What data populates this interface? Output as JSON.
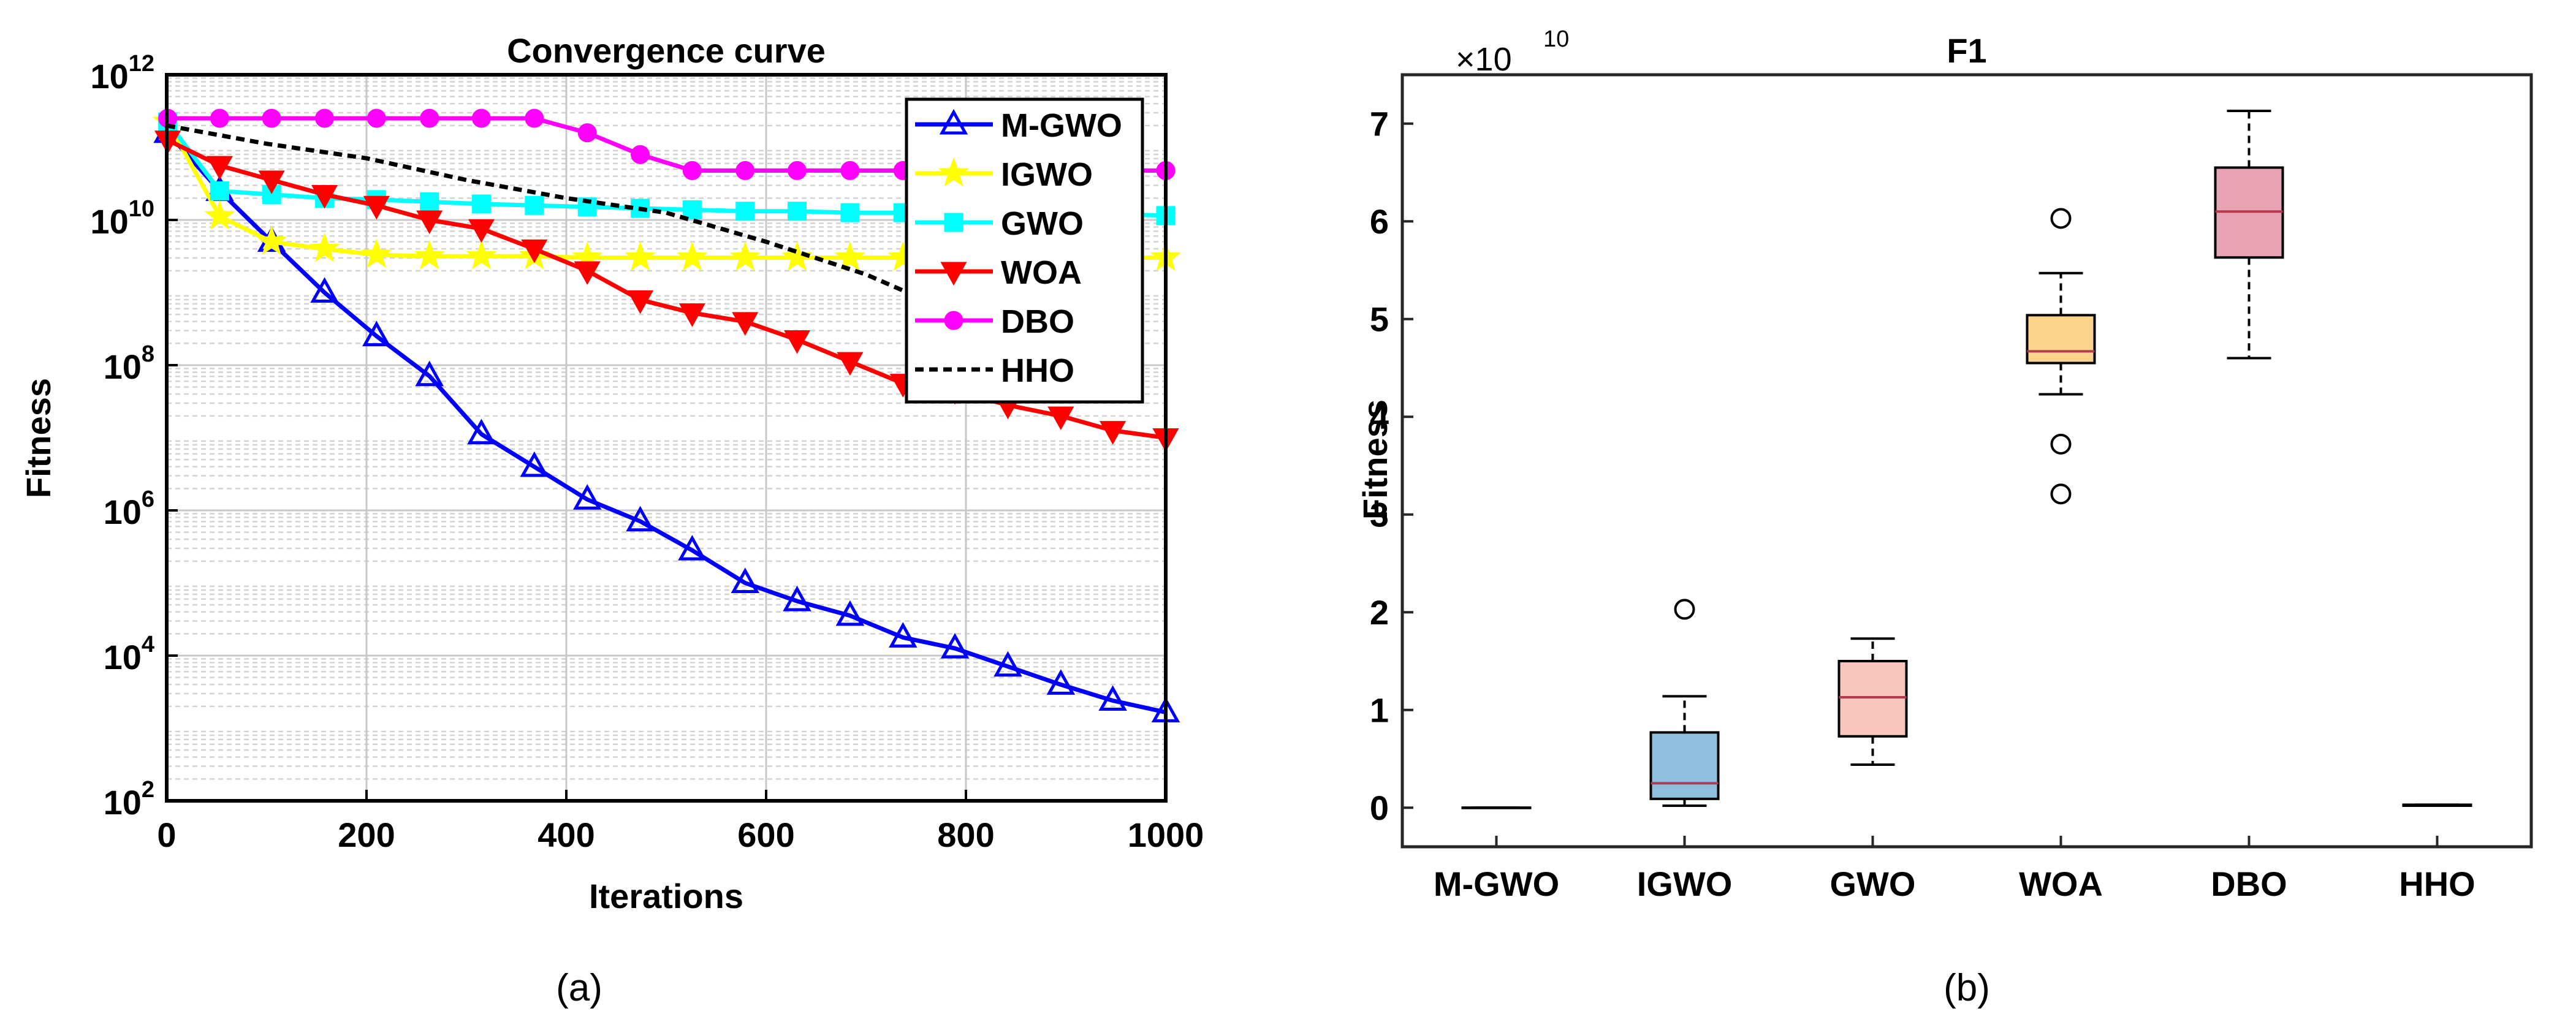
{
  "chart_data": [
    {
      "type": "line",
      "title": "Convergence curve",
      "xlabel": "Iterations",
      "ylabel": "Fitness",
      "xlim": [
        0,
        1000
      ],
      "ylim_log10": [
        2,
        12
      ],
      "yscale": "log",
      "grid": true,
      "legend_position": "top-right",
      "panel_label": "(a)",
      "xticks": [
        {
          "value": 0,
          "label": "0"
        },
        {
          "value": 200,
          "label": "200"
        },
        {
          "value": 400,
          "label": "400"
        },
        {
          "value": 600,
          "label": "600"
        },
        {
          "value": 800,
          "label": "800"
        },
        {
          "value": 1000,
          "label": "1000"
        }
      ],
      "yticks": [
        {
          "exp": 2,
          "base": "10",
          "sup": "2"
        },
        {
          "exp": 4,
          "base": "10",
          "sup": "4"
        },
        {
          "exp": 6,
          "base": "10",
          "sup": "6"
        },
        {
          "exp": 8,
          "base": "10",
          "sup": "8"
        },
        {
          "exp": 10,
          "base": "10",
          "sup": "10"
        },
        {
          "exp": 12,
          "base": "10",
          "sup": "12"
        }
      ],
      "series": [
        {
          "name": "M-GWO",
          "color": "#0000ff",
          "marker": "triangle-up",
          "dash": "",
          "x": [
            1,
            53,
            105,
            158,
            210,
            263,
            315,
            368,
            421,
            474,
            526,
            579,
            631,
            684,
            737,
            789,
            842,
            895,
            947,
            1000
          ],
          "log10_y": [
            11.2,
            10.4,
            9.7,
            9.0,
            8.4,
            7.85,
            7.05,
            6.6,
            6.15,
            5.85,
            5.45,
            5.0,
            4.75,
            4.55,
            4.25,
            4.1,
            3.85,
            3.6,
            3.38,
            3.22
          ]
        },
        {
          "name": "IGWO",
          "color": "#ffff00",
          "marker": "star",
          "dash": "",
          "x": [
            1,
            53,
            105,
            158,
            210,
            263,
            315,
            368,
            421,
            474,
            526,
            579,
            631,
            684,
            737,
            789,
            842,
            895,
            947,
            1000
          ],
          "log10_y": [
            11.35,
            10.05,
            9.7,
            9.6,
            9.52,
            9.5,
            9.5,
            9.5,
            9.48,
            9.48,
            9.48,
            9.48,
            9.48,
            9.48,
            9.48,
            9.48,
            9.48,
            9.48,
            9.48,
            9.48
          ]
        },
        {
          "name": "GWO",
          "color": "#00ffff",
          "marker": "square",
          "dash": "",
          "x": [
            1,
            53,
            105,
            158,
            210,
            263,
            315,
            368,
            421,
            474,
            526,
            579,
            631,
            684,
            737,
            789,
            842,
            895,
            947,
            1000
          ],
          "log10_y": [
            11.35,
            10.4,
            10.35,
            10.3,
            10.28,
            10.25,
            10.22,
            10.2,
            10.18,
            10.16,
            10.14,
            10.12,
            10.12,
            10.1,
            10.1,
            10.08,
            10.08,
            10.08,
            10.08,
            10.06
          ]
        },
        {
          "name": "WOA",
          "color": "#ff0000",
          "marker": "triangle-down",
          "dash": "",
          "x": [
            1,
            53,
            105,
            158,
            210,
            263,
            315,
            368,
            421,
            474,
            526,
            579,
            631,
            684,
            737,
            789,
            842,
            895,
            947,
            1000
          ],
          "log10_y": [
            11.1,
            10.75,
            10.55,
            10.35,
            10.2,
            10.0,
            9.88,
            9.6,
            9.3,
            8.9,
            8.72,
            8.6,
            8.35,
            8.05,
            7.75,
            7.65,
            7.45,
            7.3,
            7.1,
            7.0
          ]
        },
        {
          "name": "DBO",
          "color": "#ff00ff",
          "marker": "circle",
          "dash": "",
          "x": [
            1,
            53,
            105,
            158,
            210,
            263,
            315,
            368,
            421,
            474,
            526,
            579,
            631,
            684,
            737,
            789,
            842,
            895,
            947,
            1000
          ],
          "log10_y": [
            11.4,
            11.4,
            11.4,
            11.4,
            11.4,
            11.4,
            11.4,
            11.4,
            11.2,
            10.9,
            10.68,
            10.68,
            10.68,
            10.68,
            10.68,
            10.68,
            10.68,
            10.68,
            10.68,
            10.68
          ]
        },
        {
          "name": "HHO",
          "color": "#000000",
          "marker": "",
          "dash": "14,9",
          "x": [
            0,
            100,
            200,
            300,
            400,
            500,
            600,
            700,
            750
          ],
          "log10_y": [
            11.3,
            11.05,
            10.85,
            10.55,
            10.3,
            10.1,
            9.7,
            9.25,
            8.95
          ]
        }
      ]
    },
    {
      "type": "box",
      "title": "F1",
      "ylabel": "Fitness",
      "ylim": [
        -0.4,
        7.5
      ],
      "exponent_base": "×10",
      "exponent_power": "10",
      "panel_label": "(b)",
      "yticks": [
        "0",
        "1",
        "2",
        "3",
        "4",
        "5",
        "6",
        "7"
      ],
      "categories": [
        "M-GWO",
        "IGWO",
        "GWO",
        "WOA",
        "DBO",
        "HHO"
      ],
      "boxes": [
        {
          "name": "M-GWO",
          "color": "#aaaaaa",
          "min": 0.0,
          "q1": 0.0,
          "median": 0.0,
          "q3": 0.0,
          "max": 0.0,
          "outliers": []
        },
        {
          "name": "IGWO",
          "color": "#8ebfdf",
          "min": 0.02,
          "q1": 0.09,
          "median": 0.25,
          "q3": 0.77,
          "max": 1.14,
          "outliers": [
            2.03
          ]
        },
        {
          "name": "GWO",
          "color": "#f8c6bd",
          "min": 0.44,
          "q1": 0.73,
          "median": 1.13,
          "q3": 1.5,
          "max": 1.73,
          "outliers": []
        },
        {
          "name": "WOA",
          "color": "#fdd28a",
          "min": 4.23,
          "q1": 4.55,
          "median": 4.67,
          "q3": 5.04,
          "max": 5.47,
          "outliers": [
            6.03,
            3.72,
            3.21
          ]
        },
        {
          "name": "DBO",
          "color": "#e9a2b4",
          "min": 4.6,
          "q1": 5.63,
          "median": 6.1,
          "q3": 6.55,
          "max": 7.13,
          "outliers": []
        },
        {
          "name": "HHO",
          "color": "#aaaaaa",
          "min": 0.02,
          "q1": 0.02,
          "median": 0.02,
          "q3": 0.03,
          "max": 0.03,
          "outliers": []
        }
      ]
    }
  ]
}
